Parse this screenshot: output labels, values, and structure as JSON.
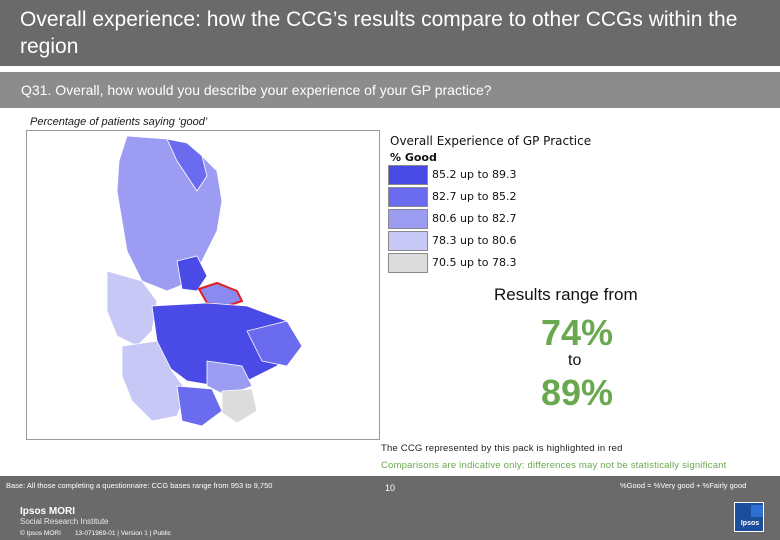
{
  "header": {
    "title": "Overall experience: how the CCG’s results compare to other CCGs within the region",
    "question": "Q31. Overall, how would you describe your experience of your GP practice?",
    "subtitle": "Percentage of patients saying ‘good’"
  },
  "legend": {
    "title": "Overall Experience of GP Practice",
    "subtitle": "% Good",
    "items": [
      {
        "label": "85.2 up to 89.3",
        "color": "#4a4ae6"
      },
      {
        "label": "82.7 up to 85.2",
        "color": "#6b6bef"
      },
      {
        "label": "80.6 up to 82.7",
        "color": "#9c9cf3"
      },
      {
        "label": "78.3 up to 80.6",
        "color": "#c8c8f7"
      },
      {
        "label": "70.5 up to 78.3",
        "color": "#dcdcdc"
      }
    ]
  },
  "results": {
    "label": "Results range from",
    "low": "74%",
    "to": "to",
    "high": "89%"
  },
  "notes": {
    "highlight": "The CCG represented by this pack is highlighted in red",
    "caveat": "Comparisons are indicative only: differences may not be statistically significant"
  },
  "footer": {
    "base": "Base: All those completing a questionnaire: CCG bases range from 953 to 9,750",
    "definition": "%Good = %Very good + %Fairly good",
    "brand_line1": "Ipsos MORI",
    "brand_line2": "Social Research Institute",
    "copyright": "© Ipsos MORI",
    "job": "13-071969-01 | Version 1 | Public",
    "page": "10",
    "logo_text": "Ipsos"
  }
}
